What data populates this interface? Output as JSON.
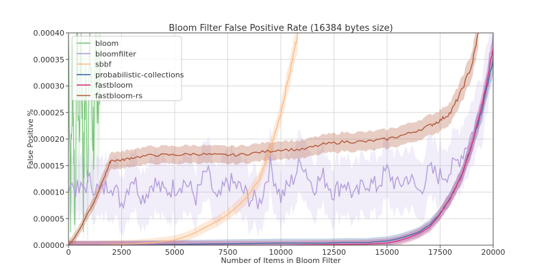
{
  "chart_data": {
    "type": "line",
    "title": "Bloom Filter False Positive Rate (16384 bytes size)",
    "xlabel": "Number of Items in Bloom Filter",
    "ylabel": "False Positive %",
    "xlim": [
      0,
      20000
    ],
    "ylim": [
      0,
      0.0004
    ],
    "x_ticks": [
      "0",
      "2500",
      "5000",
      "7500",
      "10000",
      "12500",
      "15000",
      "17500",
      "20000"
    ],
    "y_ticks": [
      "0.00000",
      "0.00005",
      "0.00010",
      "0.00015",
      "0.00020",
      "0.00025",
      "0.00030",
      "0.00035",
      "0.00040"
    ],
    "grid": true,
    "legend_position": "top-left",
    "series": [
      {
        "name": "bloom",
        "color": "#74c476",
        "x": [
          0,
          100,
          200,
          300,
          400,
          500,
          600,
          700,
          800,
          900,
          1000,
          1100,
          1200,
          1300,
          1400,
          1500
        ],
        "y": [
          0.0004,
          0.0001,
          0.00035,
          5e-05,
          0.00038,
          0.0002,
          0.0004,
          0.0001,
          0.00032,
          0.00015,
          0.0004,
          0.00025,
          0.0002,
          0.00035,
          0.00028,
          0.00032
        ]
      },
      {
        "name": "bloomfilter",
        "color": "#b39ddb",
        "x": [
          0,
          500,
          1000,
          1500,
          2000,
          2500,
          3000,
          3500,
          4000,
          4500,
          5000,
          5500,
          6000,
          6500,
          7000,
          7500,
          8000,
          8500,
          9000,
          9500,
          10000,
          10500,
          11000,
          11500,
          12000,
          12500,
          13000,
          13500,
          14000,
          14500,
          15000,
          15500,
          16000,
          16500,
          17000,
          17500,
          18000,
          18500,
          19000,
          19500,
          20000
        ],
        "y": [
          0.00012,
          0.0001,
          0.00012,
          0.0001,
          0.00012,
          8e-05,
          0.00013,
          9e-05,
          0.00012,
          0.0001,
          0.00011,
          0.00012,
          9e-05,
          0.00014,
          8e-05,
          0.00012,
          0.00011,
          9e-05,
          8e-05,
          0.00015,
          9e-05,
          0.00012,
          0.00016,
          0.00011,
          0.00013,
          0.0001,
          0.00012,
          9e-05,
          0.00012,
          0.00011,
          0.00014,
          0.00011,
          0.00013,
          0.0001,
          0.00014,
          0.00013,
          0.00014,
          0.00017,
          0.00021,
          0.00027,
          0.0004
        ]
      },
      {
        "name": "sbbf",
        "color": "#fdbb84",
        "x": [
          0,
          1000,
          2000,
          3000,
          4000,
          5000,
          5500,
          6000,
          6500,
          7000,
          7500,
          8000,
          8500,
          9000,
          9500,
          10000,
          10500,
          10800
        ],
        "y": [
          0,
          0,
          1e-06,
          2e-06,
          5e-06,
          1e-05,
          1.6e-05,
          2.4e-05,
          3.5e-05,
          4.5e-05,
          5.8e-05,
          7.5e-05,
          9.5e-05,
          0.000125,
          0.00018,
          0.00025,
          0.00034,
          0.0004
        ]
      },
      {
        "name": "probabilistic-collections",
        "color": "#3f6fa9",
        "x": [
          0,
          2000,
          4000,
          6000,
          8000,
          10000,
          12000,
          13000,
          14000,
          15000,
          15500,
          16000,
          16500,
          17000,
          17500,
          18000,
          18500,
          19000,
          19500,
          20000
        ],
        "y": [
          0,
          0,
          1e-06,
          2e-06,
          3e-06,
          4e-06,
          4e-06,
          5e-06,
          5e-06,
          8e-06,
          1.2e-05,
          1.8e-05,
          2.5e-05,
          3.8e-05,
          6e-05,
          9e-05,
          0.00013,
          0.00019,
          0.00026,
          0.00035
        ]
      },
      {
        "name": "fastbloom",
        "color": "#d9347f",
        "x": [
          0,
          2000,
          4000,
          6000,
          8000,
          10000,
          12000,
          14000,
          15000,
          15500,
          16000,
          16500,
          17000,
          17500,
          18000,
          18500,
          19000,
          19500,
          20000
        ],
        "y": [
          0,
          0,
          0,
          0,
          0,
          0,
          1e-06,
          2e-06,
          4e-06,
          8e-06,
          1.4e-05,
          2.2e-05,
          3.4e-05,
          5.8e-05,
          9e-05,
          0.00013,
          0.00019,
          0.00027,
          0.00037
        ]
      },
      {
        "name": "fastbloom-rs",
        "color": "#b35a3c",
        "x": [
          0,
          300,
          600,
          900,
          1200,
          1500,
          1800,
          2000,
          2500,
          3000,
          4000,
          5000,
          6000,
          7000,
          8000,
          9000,
          10000,
          11000,
          12000,
          13000,
          14000,
          15000,
          16000,
          17000,
          17500,
          18000,
          18500,
          19000,
          19300
        ],
        "y": [
          0,
          1.5e-05,
          3.5e-05,
          6e-05,
          8e-05,
          0.00011,
          0.00014,
          0.00016,
          0.00016,
          0.000165,
          0.00017,
          0.00017,
          0.000172,
          0.00017,
          0.00017,
          0.000175,
          0.00018,
          0.00018,
          0.00019,
          0.000195,
          0.000195,
          0.0002,
          0.00021,
          0.000225,
          0.000235,
          0.00025,
          0.00029,
          0.00034,
          0.0004
        ]
      }
    ]
  }
}
